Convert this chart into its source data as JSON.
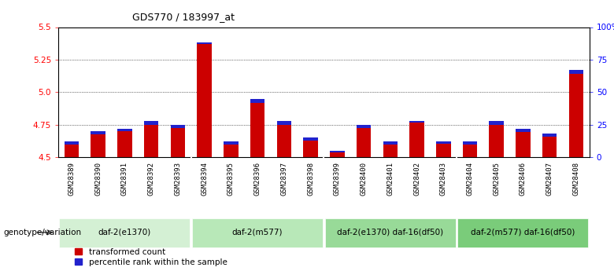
{
  "title": "GDS770 / 183997_at",
  "samples": [
    "GSM28389",
    "GSM28390",
    "GSM28391",
    "GSM28392",
    "GSM28393",
    "GSM28394",
    "GSM28395",
    "GSM28396",
    "GSM28397",
    "GSM28398",
    "GSM28399",
    "GSM28400",
    "GSM28401",
    "GSM28402",
    "GSM28403",
    "GSM28404",
    "GSM28405",
    "GSM28406",
    "GSM28407",
    "GSM28408"
  ],
  "red_values": [
    4.62,
    4.7,
    4.72,
    4.78,
    4.75,
    5.38,
    4.62,
    4.95,
    4.78,
    4.65,
    4.55,
    4.75,
    4.62,
    4.78,
    4.62,
    4.62,
    4.78,
    4.72,
    4.68,
    5.17
  ],
  "blue_heights": [
    0.02,
    0.025,
    0.022,
    0.03,
    0.025,
    0.012,
    0.022,
    0.035,
    0.03,
    0.022,
    0.015,
    0.025,
    0.022,
    0.014,
    0.014,
    0.025,
    0.03,
    0.025,
    0.022,
    0.03
  ],
  "ymin": 4.5,
  "ymax": 5.5,
  "yticks": [
    4.5,
    4.75,
    5.0,
    5.25,
    5.5
  ],
  "right_yticks": [
    0,
    25,
    50,
    75,
    100
  ],
  "right_ytick_labels": [
    "0",
    "25",
    "50",
    "75",
    "100%"
  ],
  "groups": [
    {
      "label": "daf-2(e1370)",
      "start": 0,
      "end": 5,
      "color": "#d4f0d4"
    },
    {
      "label": "daf-2(m577)",
      "start": 5,
      "end": 10,
      "color": "#b8e8b8"
    },
    {
      "label": "daf-2(e1370) daf-16(df50)",
      "start": 10,
      "end": 15,
      "color": "#98da98"
    },
    {
      "label": "daf-2(m577) daf-16(df50)",
      "start": 15,
      "end": 20,
      "color": "#7acc7a"
    }
  ],
  "genotype_label": "genotype/variation",
  "legend_red": "transformed count",
  "legend_blue": "percentile rank within the sample",
  "bar_color_red": "#cc0000",
  "bar_color_blue": "#2222cc",
  "bar_width": 0.55,
  "title_fontsize": 9
}
